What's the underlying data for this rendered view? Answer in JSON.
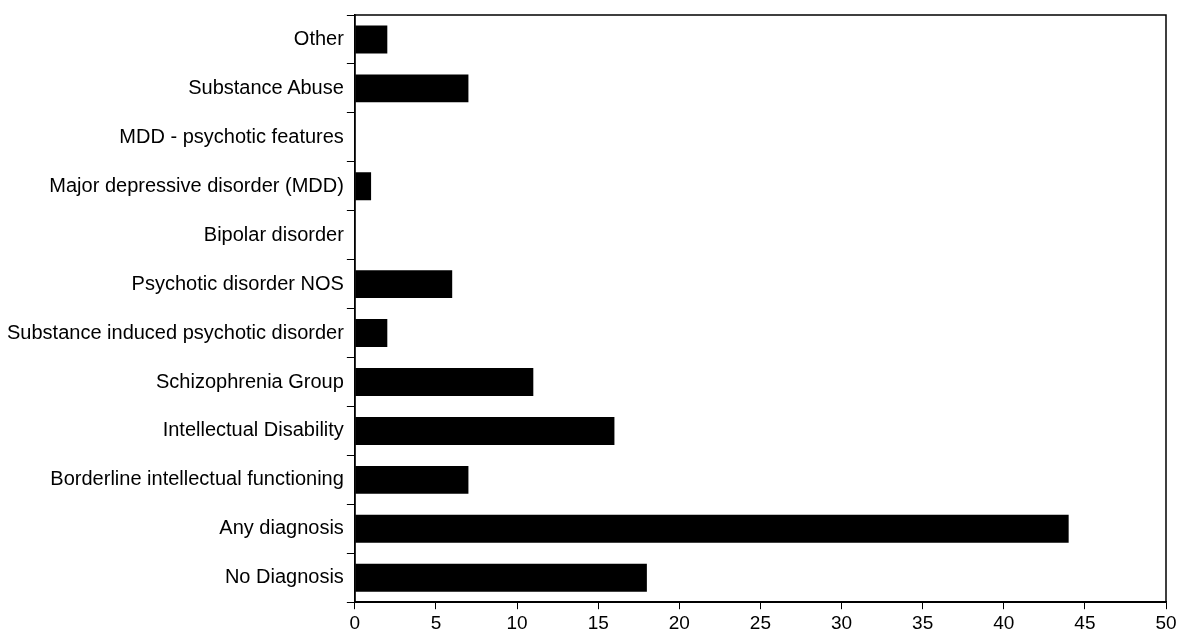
{
  "chart_data": {
    "type": "bar",
    "orientation": "horizontal",
    "categories": [
      "Other",
      "Substance Abuse",
      "MDD - psychotic features",
      "Major depressive disorder (MDD)",
      "Bipolar disorder",
      "Psychotic disorder NOS",
      "Substance induced psychotic disorder",
      "Schizophrenia Group",
      "Intellectual Disability",
      "Borderline intellectual functioning",
      "Any diagnosis",
      "No Diagnosis"
    ],
    "values": [
      2,
      7,
      0,
      1,
      0,
      6,
      2,
      11,
      16,
      7,
      44,
      18
    ],
    "color": "#000000",
    "xlim": [
      0,
      50
    ],
    "xticks": [
      0,
      5,
      10,
      15,
      20,
      25,
      30,
      35,
      40,
      45,
      50
    ],
    "grid": false,
    "legend": false
  }
}
